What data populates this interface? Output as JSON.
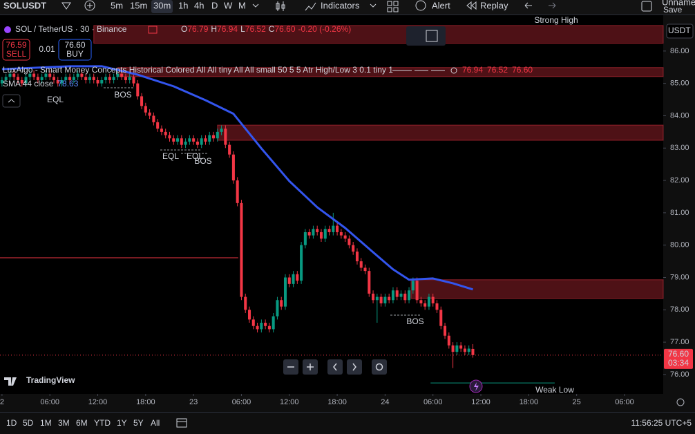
{
  "toolbar": {
    "symbol": "SOLUSDT",
    "intervals": [
      "5m",
      "15m",
      "30m",
      "1h",
      "4h",
      "D",
      "W",
      "M"
    ],
    "indicators": "Indicators",
    "alert": "Alert",
    "replay": "Replay",
    "layout_name": "Unnamed",
    "save": "Save"
  },
  "legend": {
    "title": "SOL / TetherUS · 30 · Binance",
    "o_label": "O",
    "o": "76.79",
    "h_label": "H",
    "h": "76.94",
    "l_label": "L",
    "l": "76.52",
    "c_label": "C",
    "c": "76.60",
    "change": "-0.20 (-0.26%)",
    "sell_price": "76.59",
    "sell": "SELL",
    "spread": "0.01",
    "buy_price": "76.60",
    "buy": "BUY",
    "indicator": "LuxAlgo - Smart Money Concepts Historical Colored All All tiny All All small 50 5 5 Atr High/Low 3 0.1 tiny 1",
    "ind_v1": "76.94",
    "ind_v2": "76.52",
    "ind_v3": "76.60",
    "sma_label": "SMA 44 close",
    "sma_value": "78.63",
    "currency": "USDT"
  },
  "chart_data": {
    "type": "candlestick",
    "up_color": "#089981",
    "down_color": "#f23645",
    "open": [
      85.0,
      85.1,
      85.2,
      85.3,
      85.2,
      85.1,
      85.0,
      85.2,
      85.3,
      85.2,
      85.1,
      85.2,
      85.3,
      85.2,
      85.1,
      85.0,
      85.1,
      85.2,
      85.1,
      85.2,
      85.3,
      85.2,
      85.1,
      85.2,
      85.1,
      85.0,
      85.1,
      85.2,
      85.1,
      85.2,
      85.3,
      85.2,
      85.1,
      85.2,
      85.0,
      84.6,
      84.3,
      84.1,
      84.0,
      83.8,
      83.6,
      83.5,
      83.4,
      83.3,
      83.2,
      83.3,
      83.1,
      83.2,
      83.3,
      83.2,
      83.1,
      83.3,
      83.2,
      83.4,
      83.3,
      83.5,
      83.6,
      83.1,
      82.8,
      82.0,
      81.3,
      78.4,
      78.0,
      77.7,
      77.5,
      77.4,
      77.6,
      77.5,
      77.4,
      77.8,
      78.3,
      78.1,
      79.0,
      78.8,
      79.1,
      78.9,
      80.0,
      80.4,
      80.3,
      80.5,
      80.4,
      80.2,
      80.5,
      80.4,
      80.6,
      80.4,
      80.3,
      80.2,
      80.0,
      79.8,
      79.5,
      79.3,
      79.2,
      78.5,
      78.3,
      78.4,
      78.2,
      78.4,
      78.3,
      78.6,
      78.4,
      78.5,
      78.3,
      78.6,
      78.9,
      78.3,
      78.2,
      78.1,
      78.4,
      78.2,
      78.0,
      77.5,
      77.2,
      76.9,
      76.7,
      76.9,
      76.8,
      76.7,
      76.79
    ],
    "high": [
      85.2,
      85.3,
      85.4,
      85.4,
      85.3,
      85.2,
      85.3,
      85.4,
      85.4,
      85.3,
      85.3,
      85.4,
      85.4,
      85.3,
      85.2,
      85.2,
      85.3,
      85.3,
      85.3,
      85.4,
      85.4,
      85.3,
      85.3,
      85.3,
      85.2,
      85.2,
      85.3,
      85.3,
      85.3,
      85.4,
      85.4,
      85.3,
      85.3,
      85.3,
      85.1,
      84.7,
      84.4,
      84.2,
      84.1,
      83.9,
      83.7,
      83.6,
      83.5,
      83.4,
      83.4,
      83.4,
      83.3,
      83.4,
      83.4,
      83.3,
      83.4,
      83.4,
      83.5,
      83.5,
      83.6,
      83.7,
      83.7,
      83.2,
      82.9,
      82.1,
      81.4,
      78.5,
      78.1,
      77.8,
      77.6,
      77.7,
      77.7,
      77.6,
      77.9,
      78.4,
      78.4,
      79.1,
      79.1,
      79.2,
      79.2,
      80.1,
      80.5,
      80.5,
      80.6,
      80.6,
      80.5,
      80.6,
      80.6,
      81.0,
      80.7,
      80.5,
      80.4,
      80.3,
      80.1,
      79.9,
      79.6,
      79.4,
      79.3,
      78.6,
      78.5,
      78.5,
      78.5,
      78.5,
      78.7,
      78.7,
      78.6,
      78.6,
      78.7,
      79.0,
      79.0,
      78.4,
      78.3,
      78.5,
      78.5,
      78.3,
      78.1,
      77.6,
      77.3,
      77.0,
      77.0,
      77.0,
      76.9,
      76.9,
      76.94
    ],
    "low": [
      84.9,
      85.0,
      85.1,
      85.1,
      85.0,
      84.9,
      84.9,
      85.1,
      85.1,
      85.0,
      85.0,
      85.1,
      85.1,
      85.0,
      84.9,
      84.9,
      85.0,
      85.0,
      85.0,
      85.1,
      85.1,
      85.0,
      85.0,
      85.0,
      84.9,
      84.9,
      85.0,
      85.0,
      85.0,
      85.1,
      85.1,
      85.0,
      85.0,
      84.9,
      84.5,
      84.2,
      84.0,
      83.9,
      83.7,
      83.5,
      83.4,
      83.3,
      83.2,
      83.1,
      83.1,
      83.0,
      83.0,
      83.1,
      83.1,
      83.0,
      83.0,
      83.1,
      83.1,
      83.2,
      83.2,
      83.4,
      83.0,
      82.7,
      81.9,
      81.2,
      78.3,
      77.9,
      77.6,
      77.4,
      77.3,
      77.3,
      77.4,
      77.3,
      77.3,
      77.7,
      78.0,
      78.0,
      78.7,
      78.7,
      78.8,
      78.8,
      79.9,
      80.2,
      80.2,
      80.3,
      80.1,
      80.1,
      80.3,
      80.3,
      80.3,
      80.2,
      80.1,
      79.9,
      79.7,
      79.4,
      79.2,
      79.1,
      78.4,
      78.2,
      77.6,
      78.1,
      78.1,
      78.2,
      78.2,
      78.3,
      78.3,
      78.2,
      78.2,
      78.5,
      78.2,
      78.1,
      78.0,
      78.0,
      78.1,
      77.9,
      77.4,
      77.1,
      76.8,
      76.2,
      76.6,
      76.7,
      76.6,
      76.6,
      76.52
    ],
    "close": [
      85.1,
      85.2,
      85.3,
      85.2,
      85.1,
      85.0,
      85.2,
      85.3,
      85.2,
      85.1,
      85.2,
      85.3,
      85.2,
      85.1,
      85.0,
      85.1,
      85.2,
      85.1,
      85.2,
      85.3,
      85.2,
      85.1,
      85.2,
      85.1,
      85.0,
      85.1,
      85.2,
      85.1,
      85.2,
      85.3,
      85.2,
      85.1,
      85.2,
      85.0,
      84.6,
      84.3,
      84.1,
      84.0,
      83.8,
      83.6,
      83.5,
      83.4,
      83.3,
      83.2,
      83.3,
      83.1,
      83.2,
      83.3,
      83.2,
      83.1,
      83.3,
      83.2,
      83.4,
      83.3,
      83.5,
      83.6,
      83.1,
      82.8,
      82.0,
      81.3,
      78.4,
      78.0,
      77.7,
      77.5,
      77.4,
      77.6,
      77.5,
      77.4,
      77.8,
      78.3,
      78.1,
      79.0,
      78.8,
      79.1,
      78.9,
      80.0,
      80.4,
      80.3,
      80.5,
      80.4,
      80.2,
      80.5,
      80.4,
      80.6,
      80.4,
      80.3,
      80.2,
      80.0,
      79.8,
      79.5,
      79.3,
      79.2,
      78.5,
      78.3,
      78.4,
      78.2,
      78.4,
      78.3,
      78.6,
      78.4,
      78.5,
      78.3,
      78.6,
      78.9,
      78.3,
      78.2,
      78.1,
      78.4,
      78.2,
      78.0,
      77.5,
      77.2,
      76.9,
      76.7,
      76.9,
      76.8,
      76.7,
      76.8,
      76.6
    ],
    "sma": {
      "name": "SMA 44 close",
      "color": "#3355ee",
      "x": [
        0,
        17,
        25,
        34,
        43,
        51,
        58,
        65,
        72,
        79,
        86,
        93,
        98,
        102,
        108,
        113,
        118
      ],
      "values": [
        85.44,
        85.53,
        85.53,
        85.27,
        84.91,
        84.48,
        84.06,
        82.99,
        81.98,
        81.17,
        80.53,
        79.78,
        79.25,
        78.93,
        78.97,
        78.82,
        78.63
      ]
    },
    "zones": [
      {
        "from": 86.24,
        "to": 86.79,
        "start": 23
      },
      {
        "from": 85.21,
        "to": 85.49,
        "start": 29
      },
      {
        "from": 83.24,
        "to": 83.71,
        "start": 54
      },
      {
        "from": 78.35,
        "to": 78.93,
        "start": 102.5
      }
    ],
    "levels": [
      {
        "value": 79.61,
        "start": -0.5,
        "end": 59.2,
        "color": "#f23645"
      },
      {
        "value": 75.74,
        "start": 107.4,
        "end": 138.5,
        "color": "#089981"
      }
    ],
    "annotations": [
      {
        "text": "Strong High",
        "color": "#f23645"
      },
      {
        "text": "EQL",
        "color": "#089981"
      },
      {
        "text": "EQL",
        "color": "#089981"
      },
      {
        "text": "EQL",
        "color": "#089981"
      },
      {
        "text": "BOS",
        "color": "#f23645"
      },
      {
        "text": "BOS",
        "color": "#f23645"
      },
      {
        "text": "BOS",
        "color": "#f23645"
      },
      {
        "text": "Weak Low",
        "color": "#089981"
      }
    ],
    "last_price_label": "76.60",
    "countdown": "03:34",
    "xlim": [
      -0.5,
      165.7
    ],
    "xticks": [
      {
        "value": 0,
        "label": "2"
      },
      {
        "value": 12,
        "label": "06:00"
      },
      {
        "value": 24,
        "label": "12:00"
      },
      {
        "value": 36,
        "label": "18:00"
      },
      {
        "value": 48,
        "label": "23"
      },
      {
        "value": 60,
        "label": "06:00"
      },
      {
        "value": 72,
        "label": "12:00"
      },
      {
        "value": 84,
        "label": "18:00"
      },
      {
        "value": 96,
        "label": "24"
      },
      {
        "value": 108,
        "label": "06:00"
      },
      {
        "value": 120,
        "label": "12:00"
      },
      {
        "value": 132,
        "label": "18:00"
      },
      {
        "value": 144,
        "label": "25"
      },
      {
        "value": 156,
        "label": "06:00"
      }
    ],
    "ylim": [
      75.4,
      86.83
    ],
    "yticks": [
      {
        "value": 76,
        "label": "76.00"
      },
      {
        "value": 77,
        "label": "77.00"
      },
      {
        "value": 78,
        "label": "78.00"
      },
      {
        "value": 79,
        "label": "79.00"
      },
      {
        "value": 80,
        "label": "80.00"
      },
      {
        "value": 81,
        "label": "81.00"
      },
      {
        "value": 82,
        "label": "82.00"
      },
      {
        "value": 83,
        "label": "83.00"
      },
      {
        "value": 84,
        "label": "84.00"
      },
      {
        "value": 85,
        "label": "85.00"
      },
      {
        "value": 86,
        "label": "86.00"
      }
    ],
    "grid": false
  },
  "footer": {
    "ranges": [
      "1D",
      "5D",
      "1M",
      "3M",
      "6M",
      "YTD",
      "1Y",
      "5Y",
      "All"
    ],
    "clock": "11:56:25 UTC+5",
    "brand": "TradingView"
  }
}
